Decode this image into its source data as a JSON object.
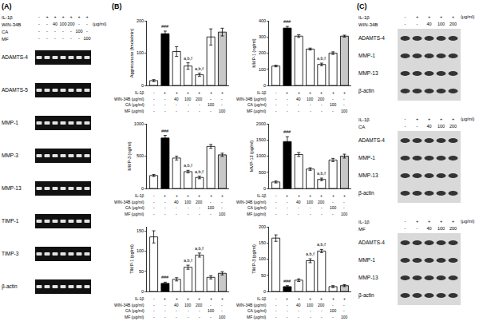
{
  "panel_labels": {
    "A": "(A)",
    "B": "(B)",
    "C": "(C)"
  },
  "gel": {
    "treatment_rows": [
      {
        "label": "IL-1β",
        "cells": [
          "-",
          "+",
          "+",
          "+",
          "+",
          "+",
          "+"
        ]
      },
      {
        "label": "WIN-34B",
        "cells": [
          "-",
          "-",
          "40",
          "100",
          "200",
          "-",
          "-"
        ]
      },
      {
        "label": "CA",
        "cells": [
          "-",
          "-",
          "-",
          "-",
          "-",
          "100",
          "-"
        ]
      },
      {
        "label": "MF",
        "cells": [
          "-",
          "-",
          "-",
          "-",
          "-",
          "-",
          "100"
        ]
      }
    ],
    "unit": "(μg/ml)",
    "genes": [
      "ADAMTS-4",
      "ADAMTS-5",
      "MMP-1",
      "MMP-3",
      "MMP-13",
      "TIMP-1",
      "TIMP-3",
      "β-actin"
    ]
  },
  "treatments": [
    {
      "label": "IL-1β",
      "cells": [
        "-",
        "+",
        "+",
        "+",
        "+",
        "+",
        "+"
      ]
    },
    {
      "label": "WIN-34B (μg/ml)",
      "cells": [
        "-",
        "-",
        "40",
        "100",
        "200",
        "-",
        "-"
      ]
    },
    {
      "label": "CA (μg/ml)",
      "cells": [
        "-",
        "-",
        "-",
        "-",
        "-",
        "100",
        "-"
      ]
    },
    {
      "label": "MF (μg/ml)",
      "cells": [
        "-",
        "-",
        "-",
        "-",
        "-",
        "-",
        "100"
      ]
    }
  ],
  "chart_data": [
    {
      "type": "bar",
      "y_label": "Aggrecanase (fmole/min)",
      "categories": [
        null,
        null,
        null,
        null,
        null,
        null,
        null
      ],
      "values": [
        15,
        160,
        105,
        60,
        33,
        150,
        165
      ],
      "errors": [
        3,
        8,
        15,
        10,
        5,
        25,
        12
      ],
      "annotations": [
        null,
        "###",
        null,
        "a,b,f",
        "a,b,f",
        null,
        null
      ],
      "colors": [
        "#ffffff",
        "#000000",
        "#ffffff",
        "#ffffff",
        "#ffffff",
        "#ffffff",
        "#c8c8c8"
      ],
      "ylim": [
        0,
        200
      ],
      "yticks": [
        0,
        100,
        200
      ],
      "grid": false
    },
    {
      "type": "bar",
      "y_label": "MMP-1 (ng/ml)",
      "categories": [
        null,
        null,
        null,
        null,
        null,
        null,
        null
      ],
      "values": [
        120,
        355,
        305,
        225,
        130,
        200,
        305
      ],
      "errors": [
        5,
        10,
        8,
        6,
        8,
        8,
        6
      ],
      "annotations": [
        null,
        "###",
        null,
        null,
        "a,b,f",
        null,
        null
      ],
      "colors": [
        "#ffffff",
        "#000000",
        "#ffffff",
        "#ffffff",
        "#ffffff",
        "#ffffff",
        "#c8c8c8"
      ],
      "ylim": [
        0,
        400
      ],
      "yticks": [
        0,
        100,
        200,
        300,
        400
      ],
      "grid": false
    },
    {
      "type": "bar",
      "y_label": "MMP-3 (ng/ml)",
      "categories": [
        null,
        null,
        null,
        null,
        null,
        null,
        null
      ],
      "values": [
        200,
        780,
        470,
        260,
        170,
        650,
        520
      ],
      "errors": [
        15,
        40,
        30,
        20,
        20,
        30,
        25
      ],
      "annotations": [
        null,
        "###",
        null,
        "a,b,f",
        "a,b,f",
        null,
        null
      ],
      "colors": [
        "#ffffff",
        "#000000",
        "#ffffff",
        "#ffffff",
        "#ffffff",
        "#ffffff",
        "#c8c8c8"
      ],
      "ylim": [
        0,
        1000
      ],
      "yticks": [
        0,
        500,
        1000
      ],
      "grid": false
    },
    {
      "type": "bar",
      "y_label": "MMP-13 (pg/ml)",
      "categories": [
        null,
        null,
        null,
        null,
        null,
        null,
        null
      ],
      "values": [
        200,
        1450,
        1050,
        600,
        280,
        880,
        1000
      ],
      "errors": [
        30,
        150,
        60,
        40,
        40,
        50,
        60
      ],
      "annotations": [
        null,
        "###",
        null,
        null,
        "a,b,f",
        null,
        null
      ],
      "colors": [
        "#ffffff",
        "#000000",
        "#ffffff",
        "#ffffff",
        "#ffffff",
        "#ffffff",
        "#c8c8c8"
      ],
      "ylim": [
        0,
        2000
      ],
      "yticks": [
        0,
        500,
        1000,
        1500,
        2000
      ],
      "grid": false
    },
    {
      "type": "bar",
      "y_label": "TIMP-1 (pg/ml)",
      "categories": [
        null,
        null,
        null,
        null,
        null,
        null,
        null
      ],
      "values": [
        135,
        20,
        30,
        60,
        90,
        35,
        45
      ],
      "errors": [
        15,
        3,
        4,
        5,
        5,
        4,
        4
      ],
      "annotations": [
        null,
        "###",
        null,
        "a,b,f",
        "a,b,f",
        null,
        null
      ],
      "colors": [
        "#ffffff",
        "#000000",
        "#ffffff",
        "#ffffff",
        "#ffffff",
        "#ffffff",
        "#c8c8c8"
      ],
      "ylim": [
        0,
        160
      ],
      "yticks": [
        0,
        50,
        100,
        150
      ],
      "grid": false
    },
    {
      "type": "bar",
      "y_label": "TIMP-3 (pg/ml)",
      "categories": [
        null,
        null,
        null,
        null,
        null,
        null,
        null
      ],
      "values": [
        165,
        15,
        35,
        95,
        125,
        15,
        18
      ],
      "errors": [
        10,
        3,
        4,
        6,
        5,
        3,
        3
      ],
      "annotations": [
        null,
        "###",
        null,
        "a,b,f",
        "a,b,f",
        null,
        null
      ],
      "colors": [
        "#ffffff",
        "#000000",
        "#ffffff",
        "#ffffff",
        "#ffffff",
        "#ffffff",
        "#c8c8c8"
      ],
      "ylim": [
        0,
        200
      ],
      "yticks": [
        0,
        50,
        100,
        150,
        200
      ],
      "grid": false
    }
  ],
  "blots": [
    {
      "treatment_rows": [
        {
          "label": "IL-1β",
          "cells": [
            "-",
            "+",
            "+",
            "+",
            "+"
          ]
        },
        {
          "label": "WIN-34B",
          "cells": [
            "-",
            "-",
            "40",
            "100",
            "200"
          ]
        }
      ],
      "unit": "(μg/ml)",
      "proteins": [
        "ADAMTS-4",
        "MMP-1",
        "MMP-13",
        "β-actin"
      ]
    },
    {
      "treatment_rows": [
        {
          "label": "IL-1β",
          "cells": [
            "-",
            "+",
            "+",
            "+",
            "+"
          ]
        },
        {
          "label": "CA",
          "cells": [
            "-",
            "-",
            "40",
            "100",
            "200"
          ]
        }
      ],
      "unit": "(μg/ml)",
      "proteins": [
        "ADAMTS-4",
        "MMP-1",
        "MMP-13",
        "β-actin"
      ]
    },
    {
      "treatment_rows": [
        {
          "label": "IL-1β",
          "cells": [
            "-",
            "+",
            "+",
            "+",
            "+"
          ]
        },
        {
          "label": "MF",
          "cells": [
            "-",
            "-",
            "40",
            "100",
            "200"
          ]
        }
      ],
      "unit": "(μg/ml)",
      "proteins": [
        "ADAMTS-4",
        "MMP-1",
        "MMP-13",
        "β-actin"
      ]
    }
  ]
}
